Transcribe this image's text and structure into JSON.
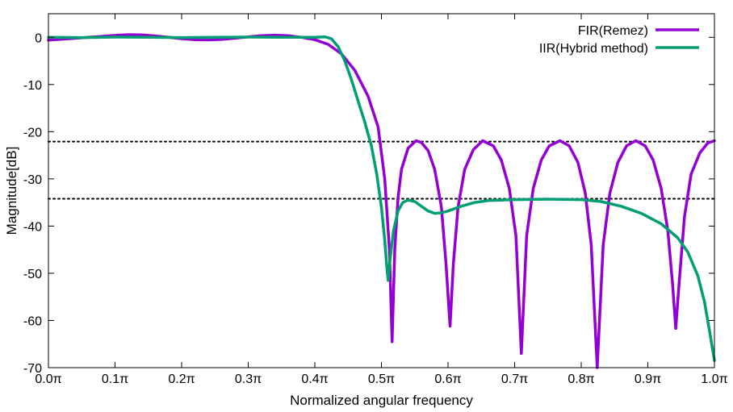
{
  "chart_data": {
    "type": "line",
    "title": "",
    "xlabel": "Normalized angular frequency",
    "ylabel": "Magnitude[dB]",
    "xlim": [
      0.0,
      1.0
    ],
    "ylim": [
      -70,
      5
    ],
    "x_ticks": [
      0.0,
      0.1,
      0.2,
      0.3,
      0.4,
      0.5,
      0.6,
      0.7,
      0.8,
      0.9,
      1.0
    ],
    "x_tick_labels": [
      "0.0π",
      "0.1π",
      "0.2π",
      "0.3π",
      "0.4π",
      "0.5π",
      "0.6π",
      "0.7π",
      "0.8π",
      "0.9π",
      "1.0π"
    ],
    "y_ticks": [
      0,
      -10,
      -20,
      -30,
      -40,
      -50,
      -60,
      -70
    ],
    "y_tick_labels": [
      "0",
      "-10",
      "-20",
      "-30",
      "-40",
      "-50",
      "-60",
      "-70"
    ],
    "grid": false,
    "legend_position": "top-right",
    "reference_lines": [
      {
        "y": -22.1,
        "style": "dotted",
        "color": "#000000"
      },
      {
        "y": -34.2,
        "style": "dotted",
        "color": "#000000"
      }
    ],
    "series": [
      {
        "name": "FIR(Remez)",
        "color": "#9400d3",
        "points": [
          [
            0.0,
            -0.6
          ],
          [
            0.02,
            -0.4
          ],
          [
            0.05,
            -0.1
          ],
          [
            0.08,
            0.2
          ],
          [
            0.1,
            0.4
          ],
          [
            0.12,
            0.55
          ],
          [
            0.14,
            0.5
          ],
          [
            0.16,
            0.3
          ],
          [
            0.18,
            0.0
          ],
          [
            0.2,
            -0.3
          ],
          [
            0.22,
            -0.5
          ],
          [
            0.24,
            -0.55
          ],
          [
            0.26,
            -0.45
          ],
          [
            0.28,
            -0.2
          ],
          [
            0.3,
            0.1
          ],
          [
            0.32,
            0.35
          ],
          [
            0.34,
            0.45
          ],
          [
            0.36,
            0.35
          ],
          [
            0.38,
            0.0
          ],
          [
            0.4,
            -0.5
          ],
          [
            0.42,
            -1.5
          ],
          [
            0.44,
            -3.5
          ],
          [
            0.46,
            -7.0
          ],
          [
            0.48,
            -12.5
          ],
          [
            0.495,
            -19.0
          ],
          [
            0.505,
            -30.0
          ],
          [
            0.512,
            -45.0
          ],
          [
            0.516,
            -64.5
          ],
          [
            0.52,
            -45.0
          ],
          [
            0.525,
            -34.0
          ],
          [
            0.53,
            -28.0
          ],
          [
            0.54,
            -23.5
          ],
          [
            0.552,
            -21.9
          ],
          [
            0.56,
            -22.3
          ],
          [
            0.57,
            -24.0
          ],
          [
            0.58,
            -28.0
          ],
          [
            0.59,
            -36.0
          ],
          [
            0.597,
            -48.0
          ],
          [
            0.603,
            -61.2
          ],
          [
            0.608,
            -48.0
          ],
          [
            0.615,
            -36.0
          ],
          [
            0.625,
            -28.0
          ],
          [
            0.638,
            -23.8
          ],
          [
            0.652,
            -21.9
          ],
          [
            0.668,
            -23.0
          ],
          [
            0.68,
            -26.0
          ],
          [
            0.692,
            -32.0
          ],
          [
            0.702,
            -42.0
          ],
          [
            0.71,
            -67.0
          ],
          [
            0.718,
            -42.0
          ],
          [
            0.728,
            -32.0
          ],
          [
            0.74,
            -26.0
          ],
          [
            0.752,
            -23.0
          ],
          [
            0.768,
            -21.9
          ],
          [
            0.782,
            -23.0
          ],
          [
            0.795,
            -26.5
          ],
          [
            0.806,
            -33.0
          ],
          [
            0.815,
            -44.0
          ],
          [
            0.824,
            -70.0
          ],
          [
            0.833,
            -44.0
          ],
          [
            0.843,
            -33.0
          ],
          [
            0.855,
            -26.5
          ],
          [
            0.868,
            -23.0
          ],
          [
            0.882,
            -21.9
          ],
          [
            0.896,
            -23.0
          ],
          [
            0.908,
            -26.0
          ],
          [
            0.92,
            -32.0
          ],
          [
            0.93,
            -41.0
          ],
          [
            0.937,
            -52.0
          ],
          [
            0.942,
            -61.7
          ],
          [
            0.947,
            -52.0
          ],
          [
            0.955,
            -38.0
          ],
          [
            0.965,
            -29.0
          ],
          [
            0.978,
            -24.5
          ],
          [
            0.99,
            -22.4
          ],
          [
            1.0,
            -21.9
          ]
        ]
      },
      {
        "name": "IIR(Hybrid method)",
        "color": "#009e73",
        "points": [
          [
            0.0,
            0.0
          ],
          [
            0.05,
            -0.05
          ],
          [
            0.1,
            0.05
          ],
          [
            0.15,
            0.0
          ],
          [
            0.2,
            -0.05
          ],
          [
            0.25,
            0.0
          ],
          [
            0.3,
            0.05
          ],
          [
            0.35,
            0.0
          ],
          [
            0.4,
            0.0
          ],
          [
            0.415,
            0.1
          ],
          [
            0.425,
            -0.3
          ],
          [
            0.435,
            -2.0
          ],
          [
            0.445,
            -5.0
          ],
          [
            0.455,
            -9.0
          ],
          [
            0.465,
            -13.5
          ],
          [
            0.475,
            -18.0
          ],
          [
            0.485,
            -23.0
          ],
          [
            0.493,
            -29.0
          ],
          [
            0.5,
            -36.0
          ],
          [
            0.505,
            -43.0
          ],
          [
            0.508,
            -48.5
          ],
          [
            0.51,
            -51.5
          ],
          [
            0.513,
            -47.0
          ],
          [
            0.518,
            -41.0
          ],
          [
            0.525,
            -36.8
          ],
          [
            0.532,
            -35.0
          ],
          [
            0.54,
            -34.5
          ],
          [
            0.55,
            -34.8
          ],
          [
            0.56,
            -35.8
          ],
          [
            0.57,
            -36.8
          ],
          [
            0.58,
            -37.3
          ],
          [
            0.59,
            -37.2
          ],
          [
            0.6,
            -36.8
          ],
          [
            0.62,
            -35.8
          ],
          [
            0.64,
            -35.0
          ],
          [
            0.66,
            -34.6
          ],
          [
            0.7,
            -34.4
          ],
          [
            0.75,
            -34.3
          ],
          [
            0.8,
            -34.4
          ],
          [
            0.83,
            -34.8
          ],
          [
            0.86,
            -35.8
          ],
          [
            0.89,
            -37.3
          ],
          [
            0.92,
            -39.5
          ],
          [
            0.945,
            -42.5
          ],
          [
            0.96,
            -45.5
          ],
          [
            0.975,
            -50.5
          ],
          [
            0.985,
            -56.0
          ],
          [
            0.993,
            -62.5
          ],
          [
            1.0,
            -68.5
          ]
        ]
      }
    ]
  }
}
